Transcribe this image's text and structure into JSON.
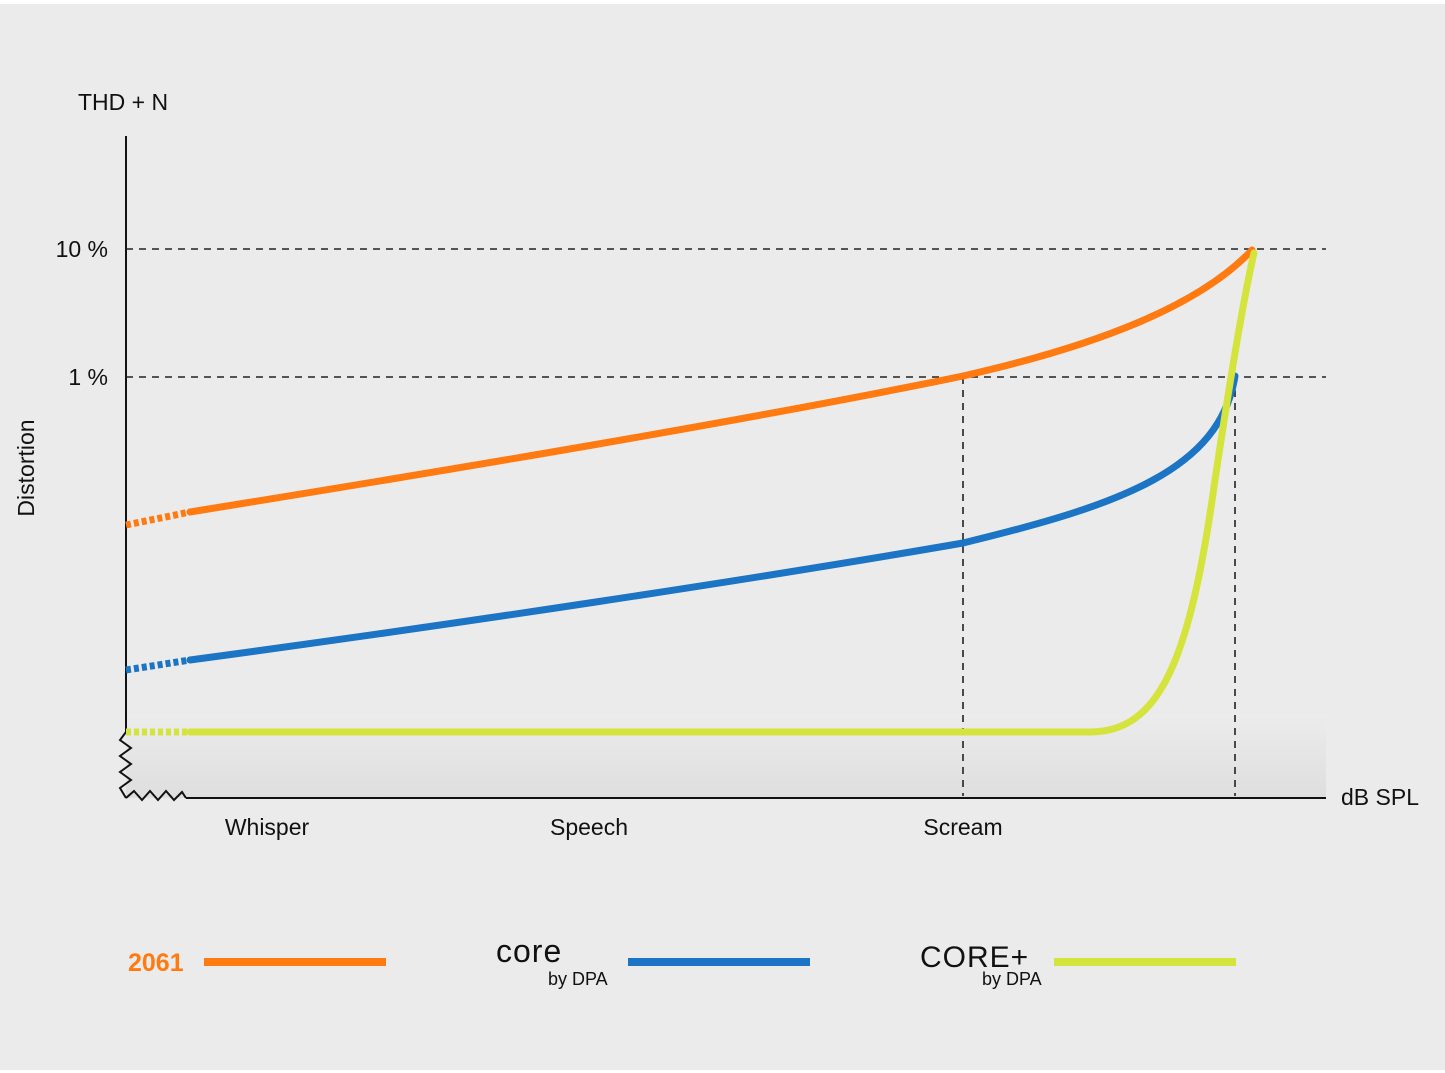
{
  "chart_data": {
    "type": "line",
    "title": "",
    "ylabel_top": "THD + N",
    "ylabel": "Distortion",
    "xlabel": "dB SPL",
    "x_categories": [
      "Whisper",
      "Speech",
      "Scream"
    ],
    "y_ticks": [
      "10 %",
      "1 %"
    ],
    "y_scale": "log",
    "grid": "dashed reference lines at 10 % and 1 %; dashed verticals at Scream and at the CORE+ 1 % crossing",
    "legend_placement": "bottom",
    "series": [
      {
        "name": "2061",
        "color": "#FF7A11",
        "points_log10_pct": [
          [
            0,
            -0.95
          ],
          [
            0.35,
            -0.55
          ],
          [
            0.7,
            0.0
          ],
          [
            0.85,
            0.42
          ],
          [
            0.9,
            1.0
          ]
        ],
        "note": "reaches 1 % at Scream, 10 % at the right end"
      },
      {
        "name": "core by DPA",
        "color": "#1B74C4",
        "points_log10_pct": [
          [
            0,
            -2.2
          ],
          [
            0.35,
            -1.8
          ],
          [
            0.7,
            -1.3
          ],
          [
            0.85,
            -0.7
          ],
          [
            0.9,
            0.0
          ]
        ]
      },
      {
        "name": "CORE+ by DPA",
        "color": "#D4E43C",
        "points_log10_pct": [
          [
            0,
            -2.7
          ],
          [
            0.75,
            -2.7
          ],
          [
            0.82,
            -2.45
          ],
          [
            0.87,
            -0.9
          ],
          [
            0.9,
            1.0
          ]
        ],
        "note": "flat until beyond Scream, then rises steeply to 10 %"
      }
    ],
    "legend": [
      {
        "label": "2061",
        "color": "#FF7A11"
      },
      {
        "label_main": "core",
        "label_sub": "by DPA",
        "color": "#1B74C4"
      },
      {
        "label_main": "CORE+",
        "label_sub": "by DPA",
        "color": "#D4E43C"
      }
    ]
  }
}
